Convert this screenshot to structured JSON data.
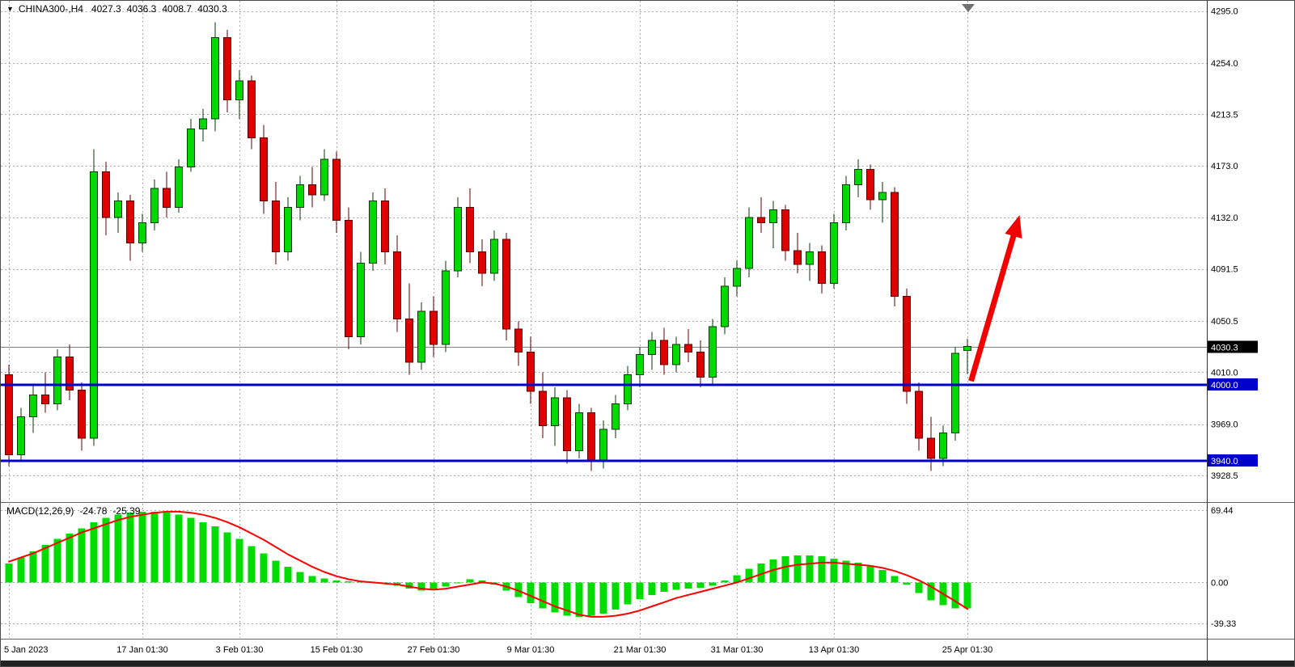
{
  "icons": {
    "symbol_dropdown": "▼",
    "chart_shift_marker": "triangle-down"
  },
  "header": {
    "symbol_timeframe": "CHINA300-,H4",
    "open": "4027.3",
    "high": "4036.3",
    "low": "4008.7",
    "close": "4030.3"
  },
  "chart_data": {
    "type": "candlestick",
    "title": "CHINA300- H4 chart with MACD, horizontal support lines at 4000.0 and 3940.0, and red up-trend arrow annotation",
    "symbol": "CHINA300-",
    "timeframe": "H4",
    "bar_count": 80,
    "colors": {
      "up": "#00D900",
      "up_border": "#0A3A0A",
      "down": "#DE0000",
      "down_border": "#5C0000",
      "hline": "#0000C8",
      "arrow": "#F20000",
      "signal": "#FF0000",
      "histogram": "#00DC00",
      "grid": "#A9A9A9",
      "current_price_line": "#808080",
      "current_price_label_bg": "#000000",
      "axis_text": "#000000"
    },
    "price_axis": {
      "ticks": [
        4295.0,
        4254.0,
        4213.5,
        4173.0,
        4132.0,
        4091.5,
        4050.5,
        4010.0,
        3969.0,
        3928.5
      ],
      "range": [
        3907.6,
        4303.0
      ]
    },
    "current_price": 4030.3,
    "hlines": [
      {
        "price": 4000.0,
        "label": "4000.0"
      },
      {
        "price": 3940.0,
        "label": "3940.0"
      }
    ],
    "time_axis": {
      "labels": [
        "5 Jan 2023",
        "17 Jan 01:30",
        "3 Feb 01:30",
        "15 Feb 01:30",
        "27 Feb 01:30",
        "9 Mar 01:30",
        "21 Mar 01:30",
        "31 Mar 01:30",
        "13 Apr 01:30",
        "25 Apr 01:30"
      ],
      "indices": [
        0,
        11,
        19,
        27,
        35,
        43,
        52,
        60,
        68,
        79
      ]
    },
    "candles": [
      [
        4008,
        4016,
        3936,
        3945
      ],
      [
        3945,
        3982,
        3940,
        3975
      ],
      [
        3975,
        4000,
        3962,
        3992
      ],
      [
        3992,
        4010,
        3978,
        3985
      ],
      [
        3985,
        4028,
        3980,
        4022
      ],
      [
        4022,
        4032,
        3988,
        3996
      ],
      [
        3996,
        4002,
        3948,
        3958
      ],
      [
        3958,
        4186,
        3952,
        4168
      ],
      [
        4168,
        4176,
        4118,
        4132
      ],
      [
        4132,
        4152,
        4120,
        4145
      ],
      [
        4145,
        4150,
        4098,
        4112
      ],
      [
        4112,
        4135,
        4105,
        4128
      ],
      [
        4128,
        4162,
        4122,
        4155
      ],
      [
        4155,
        4168,
        4132,
        4140
      ],
      [
        4140,
        4178,
        4136,
        4172
      ],
      [
        4172,
        4210,
        4168,
        4202
      ],
      [
        4202,
        4218,
        4192,
        4210
      ],
      [
        4210,
        4286,
        4200,
        4274
      ],
      [
        4274,
        4280,
        4215,
        4225
      ],
      [
        4225,
        4248,
        4210,
        4240
      ],
      [
        4240,
        4244,
        4186,
        4195
      ],
      [
        4195,
        4205,
        4135,
        4145
      ],
      [
        4145,
        4160,
        4095,
        4105
      ],
      [
        4105,
        4148,
        4098,
        4140
      ],
      [
        4140,
        4165,
        4130,
        4158
      ],
      [
        4158,
        4172,
        4140,
        4150
      ],
      [
        4150,
        4186,
        4145,
        4178
      ],
      [
        4178,
        4184,
        4120,
        4130
      ],
      [
        4130,
        4140,
        4028,
        4038
      ],
      [
        4038,
        4105,
        4032,
        4096
      ],
      [
        4096,
        4152,
        4090,
        4145
      ],
      [
        4145,
        4155,
        4095,
        4105
      ],
      [
        4105,
        4118,
        4042,
        4052
      ],
      [
        4052,
        4080,
        4008,
        4018
      ],
      [
        4018,
        4065,
        4012,
        4058
      ],
      [
        4058,
        4070,
        4022,
        4032
      ],
      [
        4032,
        4098,
        4026,
        4090
      ],
      [
        4090,
        4148,
        4085,
        4140
      ],
      [
        4140,
        4155,
        4096,
        4105
      ],
      [
        4105,
        4115,
        4078,
        4088
      ],
      [
        4088,
        4122,
        4082,
        4115
      ],
      [
        4115,
        4120,
        4035,
        4044
      ],
      [
        4044,
        4050,
        4015,
        4026
      ],
      [
        4026,
        4038,
        3985,
        3995
      ],
      [
        3995,
        4010,
        3958,
        3968
      ],
      [
        3968,
        3998,
        3952,
        3990
      ],
      [
        3990,
        3996,
        3938,
        3948
      ],
      [
        3948,
        3985,
        3942,
        3978
      ],
      [
        3978,
        3982,
        3932,
        3940
      ],
      [
        3940,
        3972,
        3934,
        3965
      ],
      [
        3965,
        3992,
        3958,
        3985
      ],
      [
        3985,
        4015,
        3980,
        4008
      ],
      [
        4008,
        4030,
        3998,
        4024
      ],
      [
        4024,
        4042,
        4012,
        4035
      ],
      [
        4035,
        4045,
        4008,
        4016
      ],
      [
        4016,
        4038,
        4010,
        4032
      ],
      [
        4032,
        4044,
        4018,
        4026
      ],
      [
        4026,
        4035,
        3998,
        4006
      ],
      [
        4006,
        4052,
        4000,
        4046
      ],
      [
        4046,
        4085,
        4040,
        4078
      ],
      [
        4078,
        4098,
        4070,
        4092
      ],
      [
        4092,
        4140,
        4085,
        4132
      ],
      [
        4132,
        4148,
        4120,
        4128
      ],
      [
        4128,
        4145,
        4108,
        4138
      ],
      [
        4138,
        4142,
        4098,
        4106
      ],
      [
        4106,
        4120,
        4088,
        4095
      ],
      [
        4095,
        4112,
        4082,
        4105
      ],
      [
        4105,
        4110,
        4072,
        4080
      ],
      [
        4080,
        4135,
        4076,
        4128
      ],
      [
        4128,
        4165,
        4122,
        4158
      ],
      [
        4158,
        4178,
        4148,
        4170
      ],
      [
        4170,
        4174,
        4138,
        4146
      ],
      [
        4146,
        4160,
        4128,
        4152
      ],
      [
        4152,
        4156,
        4062,
        4070
      ],
      [
        4070,
        4076,
        3985,
        3995
      ],
      [
        3995,
        4002,
        3948,
        3958
      ],
      [
        3958,
        3975,
        3932,
        3942
      ],
      [
        3942,
        3968,
        3936,
        3962
      ],
      [
        3962,
        4030,
        3956,
        4025
      ],
      [
        4027.3,
        4036.3,
        4008.7,
        4030.3
      ]
    ],
    "annotation_arrow": {
      "from": {
        "bar": 79.3,
        "price": 4003
      },
      "to": {
        "bar": 83.3,
        "price": 4134
      }
    },
    "macd": {
      "title": "MACD(12,26,9)",
      "value": "-24.78",
      "signal_value": "-25.39",
      "ticks": [
        69.44,
        0.0,
        -39.33
      ],
      "range": [
        -53.3,
        75.7
      ],
      "histogram": [
        18,
        24,
        30,
        36,
        42,
        47,
        52,
        58,
        62,
        65,
        67,
        68,
        68,
        67,
        65,
        62,
        58,
        54,
        48,
        42,
        35,
        28,
        21,
        15,
        10,
        6,
        4,
        2,
        1,
        1,
        0.5,
        -1,
        -3,
        -6,
        -8,
        -7,
        -4,
        0,
        3,
        2,
        -2,
        -8,
        -14,
        -20,
        -25,
        -29,
        -32,
        -33,
        -32,
        -30,
        -26,
        -21,
        -16,
        -12,
        -9,
        -7,
        -6,
        -5,
        -3,
        2,
        7,
        13,
        18,
        22,
        25,
        26,
        26,
        25,
        23,
        21,
        19,
        16,
        12,
        6,
        -2,
        -10,
        -17,
        -22,
        -25,
        -24.78
      ],
      "signal": [
        20,
        24,
        28,
        33,
        38,
        43,
        48,
        52,
        56,
        60,
        63,
        65,
        67,
        68,
        68,
        67,
        65,
        62,
        58,
        53,
        47,
        41,
        34,
        27,
        21,
        15,
        10,
        6,
        3,
        1,
        0,
        -1,
        -2,
        -4,
        -6,
        -7,
        -6,
        -4,
        -2,
        0,
        -1,
        -4,
        -8,
        -13,
        -18,
        -23,
        -27,
        -31,
        -33,
        -33,
        -32,
        -30,
        -27,
        -23,
        -19,
        -15,
        -12,
        -9,
        -6,
        -3,
        0,
        4,
        8,
        12,
        15,
        17,
        18,
        19,
        19,
        18,
        17,
        16,
        14,
        11,
        7,
        2,
        -4,
        -11,
        -18,
        -25.39
      ]
    }
  }
}
